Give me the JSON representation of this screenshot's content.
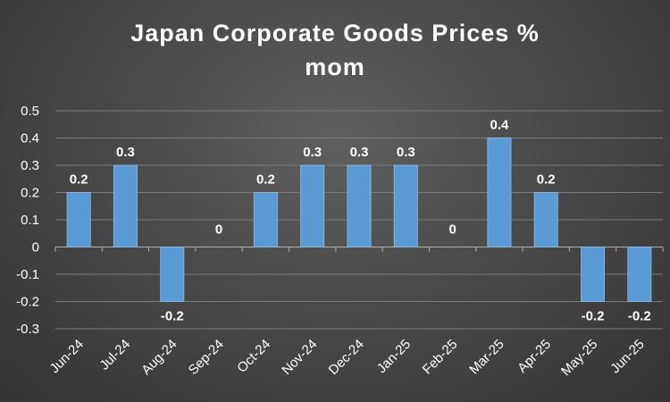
{
  "chart_data": {
    "type": "bar",
    "title_lines": [
      "Japan Corporate Goods Prices %",
      "mom"
    ],
    "categories": [
      "Jun-24",
      "Jul-24",
      "Aug-24",
      "Sep-24",
      "Oct-24",
      "Nov-24",
      "Dec-24",
      "Jan-25",
      "Feb-25",
      "Mar-25",
      "Apr-25",
      "May-25",
      "Jun-25"
    ],
    "values": [
      0.2,
      0.3,
      -0.2,
      0,
      0.2,
      0.3,
      0.3,
      0.3,
      0,
      0.4,
      0.2,
      -0.2,
      -0.2
    ],
    "data_labels": [
      "0.2",
      "0.3",
      "-0.2",
      "0",
      "0.2",
      "0.3",
      "0.3",
      "0.3",
      "0",
      "0.4",
      "0.2",
      "-0.2",
      "-0.2"
    ],
    "y_ticks": [
      "0.5",
      "0.4",
      "0.3",
      "0.2",
      "0.1",
      "0",
      "-0.1",
      "-0.2",
      "-0.3"
    ],
    "ylim": [
      -0.3,
      0.5
    ],
    "grid": true,
    "bar_color": "#5b9bd5",
    "grid_color": "#7a7a7a",
    "xlabel": "",
    "ylabel": ""
  }
}
